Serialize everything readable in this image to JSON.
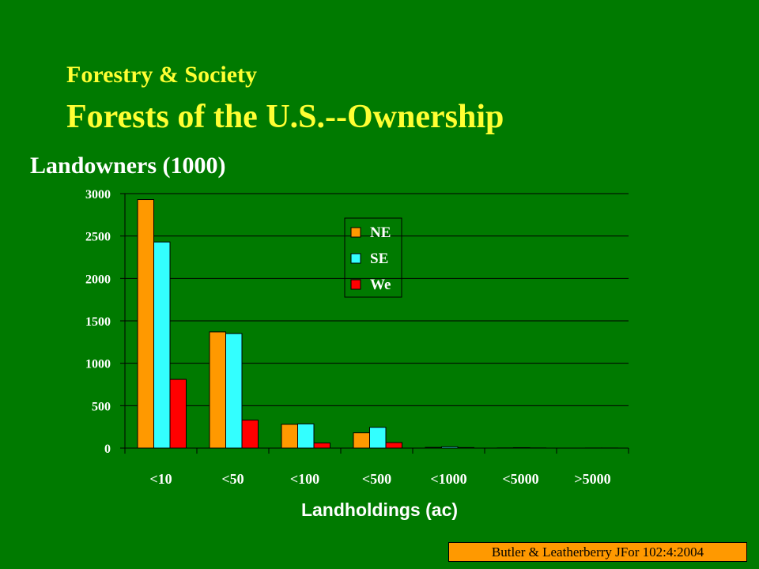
{
  "slide": {
    "subtitle": "Forestry & Society",
    "title": "Forests of the U.S.--Ownership",
    "citation": "Butler & Leatherberry JFor 102:4:2004"
  },
  "colors": {
    "background": "#007a00",
    "title": "#ffff33",
    "citation_bg": "#ff9900"
  },
  "chart_data": {
    "type": "bar",
    "ylabel": "Landowners (1000)",
    "xlabel": "Landholdings (ac)",
    "categories": [
      "<10",
      "<50",
      "<100",
      "<500",
      "<1000",
      "<5000",
      ">5000"
    ],
    "series": [
      {
        "name": "NE",
        "color": "#ff9900",
        "values": [
          2930,
          1370,
          280,
          180,
          8,
          2,
          0
        ]
      },
      {
        "name": "SE",
        "color": "#33ffff",
        "values": [
          2430,
          1350,
          285,
          245,
          15,
          5,
          1
        ]
      },
      {
        "name": "We",
        "color": "#ff0000",
        "values": [
          810,
          330,
          60,
          65,
          6,
          2,
          1
        ]
      }
    ],
    "ylim": [
      0,
      3000
    ],
    "yticks": [
      0,
      500,
      1000,
      1500,
      2000,
      2500,
      3000
    ],
    "grid": true,
    "legend": "top-center"
  }
}
